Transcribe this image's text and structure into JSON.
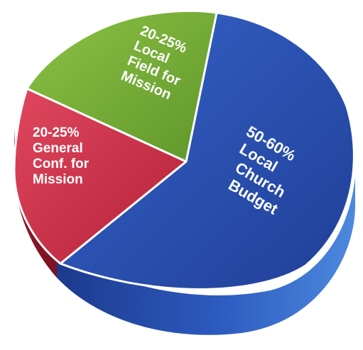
{
  "chart_data": {
    "type": "pie",
    "title": "",
    "style": "3d",
    "slices": [
      {
        "id": "local-church",
        "range": "50-60%",
        "value": 55,
        "label_lines": [
          "50-60%",
          "Local",
          "Church",
          "Budget"
        ],
        "color": "#2a4fae"
      },
      {
        "id": "general-conf",
        "range": "20-25%",
        "value": 22.5,
        "label_lines": [
          "20-25%",
          "General",
          "Conf. for",
          "Mission"
        ],
        "color": "#cf2f48"
      },
      {
        "id": "local-field",
        "range": "20-25%",
        "value": 22.5,
        "label_lines": [
          "20-25%",
          "Local",
          "Field for",
          "Mission"
        ],
        "color": "#7fb53a"
      }
    ]
  }
}
